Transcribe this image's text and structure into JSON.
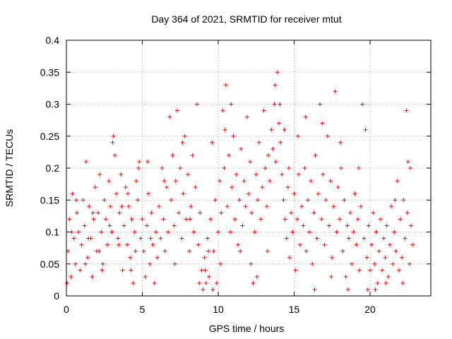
{
  "chart_data": {
    "type": "scatter",
    "title": "Day 364 of 2021, SRMTID for receiver mtut",
    "xlabel": "GPS time / hours",
    "ylabel": "SRMTID / TECUs",
    "xlim": [
      0,
      24
    ],
    "ylim": [
      0,
      0.4
    ],
    "xticks": [
      0,
      5,
      10,
      15,
      20
    ],
    "xtick_labels": [
      "0",
      "5",
      "10",
      "15",
      "20"
    ],
    "yticks": [
      0,
      0.05,
      0.1,
      0.15,
      0.2,
      0.25,
      0.3,
      0.35,
      0.4
    ],
    "ytick_labels": [
      "0",
      "0.05",
      "0.1",
      "0.15",
      "0.2",
      "0.25",
      "0.3",
      "0.35",
      "0.4"
    ],
    "grid": true,
    "marker": "plus",
    "marker_color": "#ff0000",
    "series": [
      {
        "name": "SRMTID",
        "points": [
          [
            0.1,
            0.07
          ],
          [
            0.2,
            0.12
          ],
          [
            0.3,
            0.03
          ],
          [
            0.4,
            0.16
          ],
          [
            0.5,
            0.09
          ],
          [
            0.6,
            0.05
          ],
          [
            0.7,
            0.13
          ],
          [
            0.8,
            0.1
          ],
          [
            0.9,
            0.04
          ],
          [
            1.0,
            0.08
          ],
          [
            1.1,
            0.15
          ],
          [
            1.2,
            0.11
          ],
          [
            1.3,
            0.21
          ],
          [
            1.4,
            0.06
          ],
          [
            1.5,
            0.14
          ],
          [
            1.6,
            0.09
          ],
          [
            1.7,
            0.03
          ],
          [
            1.8,
            0.12
          ],
          [
            1.9,
            0.17
          ],
          [
            2.0,
            0.07
          ],
          [
            2.1,
            0.13
          ],
          [
            2.2,
            0.19
          ],
          [
            2.3,
            0.1
          ],
          [
            2.4,
            0.05
          ],
          [
            2.5,
            0.15
          ],
          [
            2.6,
            0.12
          ],
          [
            2.7,
            0.08
          ],
          [
            2.8,
            0.18
          ],
          [
            2.9,
            0.14
          ],
          [
            3.0,
            0.1
          ],
          [
            3.1,
            0.25
          ],
          [
            3.2,
            0.22
          ],
          [
            3.3,
            0.16
          ],
          [
            3.4,
            0.09
          ],
          [
            3.5,
            0.13
          ],
          [
            3.6,
            0.19
          ],
          [
            3.7,
            0.04
          ],
          [
            3.8,
            0.11
          ],
          [
            3.9,
            0.17
          ],
          [
            4.0,
            0.08
          ],
          [
            4.1,
            0.14
          ],
          [
            4.2,
            0.06
          ],
          [
            4.3,
            0.12
          ],
          [
            4.4,
            0.02
          ],
          [
            4.5,
            0.1
          ],
          [
            4.6,
            0.18
          ],
          [
            4.7,
            0.15
          ],
          [
            4.8,
            0.21
          ],
          [
            4.9,
            0.09
          ],
          [
            5.0,
            0.12
          ],
          [
            5.1,
            0.07
          ],
          [
            5.2,
            0.03
          ],
          [
            5.3,
            0.11
          ],
          [
            5.4,
            0.16
          ],
          [
            5.5,
            0.05
          ],
          [
            5.6,
            0.13
          ],
          [
            5.7,
            0.08
          ],
          [
            5.8,
            0.02
          ],
          [
            5.9,
            0.1
          ],
          [
            6.0,
            0.06
          ],
          [
            6.1,
            0.14
          ],
          [
            6.2,
            0.09
          ],
          [
            6.3,
            0.2
          ],
          [
            6.4,
            0.12
          ],
          [
            6.5,
            0.07
          ],
          [
            6.6,
            0.17
          ],
          [
            6.7,
            0.1
          ],
          [
            6.8,
            0.28
          ],
          [
            6.9,
            0.15
          ],
          [
            7.0,
            0.22
          ],
          [
            7.1,
            0.11
          ],
          [
            7.2,
            0.18
          ],
          [
            7.3,
            0.29
          ],
          [
            7.4,
            0.13
          ],
          [
            7.5,
            0.2
          ],
          [
            7.6,
            0.09
          ],
          [
            7.7,
            0.16
          ],
          [
            7.8,
            0.25
          ],
          [
            7.9,
            0.12
          ],
          [
            8.0,
            0.19
          ],
          [
            8.1,
            0.07
          ],
          [
            8.2,
            0.14
          ],
          [
            8.3,
            0.22
          ],
          [
            8.4,
            0.1
          ],
          [
            8.5,
            0.17
          ],
          [
            8.6,
            0.3
          ],
          [
            8.7,
            0.08
          ],
          [
            8.8,
            0.13
          ],
          [
            8.9,
            0.04
          ],
          [
            9.0,
            0.01
          ],
          [
            9.1,
            0.06
          ],
          [
            9.2,
            0.02
          ],
          [
            9.3,
            0.09
          ],
          [
            9.4,
            0.03
          ],
          [
            9.5,
            0.12
          ],
          [
            9.6,
            0.24
          ],
          [
            9.7,
            0.07
          ],
          [
            9.8,
            0.15
          ],
          [
            9.9,
            0.02
          ],
          [
            10.0,
            0.1
          ],
          [
            10.1,
            0.18
          ],
          [
            10.2,
            0.13
          ],
          [
            10.3,
            0.29
          ],
          [
            10.4,
            0.2
          ],
          [
            10.5,
            0.33
          ],
          [
            10.6,
            0.14
          ],
          [
            10.7,
            0.22
          ],
          [
            10.8,
            0.1
          ],
          [
            10.9,
            0.17
          ],
          [
            11.0,
            0.25
          ],
          [
            11.1,
            0.12
          ],
          [
            11.2,
            0.19
          ],
          [
            11.3,
            0.08
          ],
          [
            11.4,
            0.15
          ],
          [
            11.5,
            0.23
          ],
          [
            11.6,
            0.11
          ],
          [
            11.7,
            0.18
          ],
          [
            11.8,
            0.14
          ],
          [
            11.9,
            0.28
          ],
          [
            12.0,
            0.16
          ],
          [
            12.1,
            0.21
          ],
          [
            12.2,
            0.13
          ],
          [
            12.3,
            0.02
          ],
          [
            12.4,
            0.1
          ],
          [
            12.5,
            0.19
          ],
          [
            12.6,
            0.15
          ],
          [
            12.7,
            0.24
          ],
          [
            12.8,
            0.12
          ],
          [
            12.9,
            0.17
          ],
          [
            13.0,
            0.29
          ],
          [
            13.1,
            0.2
          ],
          [
            13.2,
            0.14
          ],
          [
            13.3,
            0.22
          ],
          [
            13.4,
            0.18
          ],
          [
            13.5,
            0.26
          ],
          [
            13.6,
            0.23
          ],
          [
            13.7,
            0.3
          ],
          [
            13.8,
            0.21
          ],
          [
            13.9,
            0.35
          ],
          [
            14.0,
            0.27
          ],
          [
            14.1,
            0.24
          ],
          [
            14.2,
            0.19
          ],
          [
            14.3,
            0.15
          ],
          [
            14.4,
            0.12
          ],
          [
            14.5,
            0.09
          ],
          [
            14.6,
            0.17
          ],
          [
            14.7,
            0.06
          ],
          [
            14.8,
            0.13
          ],
          [
            14.9,
            0.1
          ],
          [
            15.0,
            0.16
          ],
          [
            15.1,
            0.04
          ],
          [
            15.2,
            0.12
          ],
          [
            15.3,
            0.19
          ],
          [
            15.4,
            0.08
          ],
          [
            15.5,
            0.14
          ],
          [
            15.6,
            0.11
          ],
          [
            15.7,
            0.2
          ],
          [
            15.8,
            0.07
          ],
          [
            15.9,
            0.15
          ],
          [
            16.0,
            0.1
          ],
          [
            16.1,
            0.18
          ],
          [
            16.2,
            0.05
          ],
          [
            16.3,
            0.13
          ],
          [
            16.4,
            0.22
          ],
          [
            16.5,
            0.09
          ],
          [
            16.6,
            0.16
          ],
          [
            16.7,
            0.3
          ],
          [
            16.8,
            0.12
          ],
          [
            16.9,
            0.19
          ],
          [
            17.0,
            0.08
          ],
          [
            17.1,
            0.15
          ],
          [
            17.2,
            0.25
          ],
          [
            17.3,
            0.11
          ],
          [
            17.4,
            0.18
          ],
          [
            17.5,
            0.06
          ],
          [
            17.6,
            0.14
          ],
          [
            17.7,
            0.32
          ],
          [
            17.8,
            0.1
          ],
          [
            17.9,
            0.17
          ],
          [
            18.0,
            0.12
          ],
          [
            18.1,
            0.2
          ],
          [
            18.2,
            0.07
          ],
          [
            18.3,
            0.15
          ],
          [
            18.4,
            0.03
          ],
          [
            18.5,
            0.11
          ],
          [
            18.6,
            0.09
          ],
          [
            18.7,
            0.13
          ],
          [
            18.8,
            0.05
          ],
          [
            18.9,
            0.1
          ],
          [
            19.0,
            0.16
          ],
          [
            19.1,
            0.08
          ],
          [
            19.2,
            0.12
          ],
          [
            19.3,
            0.04
          ],
          [
            19.4,
            0.14
          ],
          [
            19.5,
            0.3
          ],
          [
            19.6,
            0.09
          ],
          [
            19.7,
            0.26
          ],
          [
            19.8,
            0.06
          ],
          [
            19.9,
            0.11
          ],
          [
            20.0,
            0.04
          ],
          [
            20.1,
            0.08
          ],
          [
            20.2,
            0.13
          ],
          [
            20.3,
            0.05
          ],
          [
            20.4,
            0.1
          ],
          [
            20.5,
            0.02
          ],
          [
            20.6,
            0.07
          ],
          [
            20.7,
            0.12
          ],
          [
            20.8,
            0.04
          ],
          [
            20.9,
            0.09
          ],
          [
            21.0,
            0.06
          ],
          [
            21.1,
            0.11
          ],
          [
            21.2,
            0.03
          ],
          [
            21.3,
            0.08
          ],
          [
            21.4,
            0.14
          ],
          [
            21.5,
            0.05
          ],
          [
            21.6,
            0.1
          ],
          [
            21.7,
            0.07
          ],
          [
            21.8,
            0.18
          ],
          [
            21.9,
            0.04
          ],
          [
            22.0,
            0.12
          ],
          [
            22.1,
            0.06
          ],
          [
            22.2,
            0.15
          ],
          [
            22.3,
            0.09
          ],
          [
            22.4,
            0.29
          ],
          [
            22.5,
            0.21
          ],
          [
            22.6,
            0.05
          ],
          [
            22.7,
            0.11
          ],
          [
            22.8,
            0.08
          ],
          [
            0.05,
            0.02
          ],
          [
            0.35,
            0.1
          ],
          [
            1.25,
            0.05
          ],
          [
            1.75,
            0.13
          ],
          [
            2.35,
            0.04
          ],
          [
            3.05,
            0.24
          ],
          [
            3.65,
            0.14
          ],
          [
            4.25,
            0.04
          ],
          [
            4.75,
            0.2
          ],
          [
            5.35,
            0.21
          ],
          [
            5.55,
            0.09
          ],
          [
            6.45,
            0.18
          ],
          [
            7.15,
            0.05
          ],
          [
            7.65,
            0.24
          ],
          [
            8.15,
            0.12
          ],
          [
            8.75,
            0.02
          ],
          [
            9.15,
            0.04
          ],
          [
            9.35,
            0.07
          ],
          [
            9.65,
            0.01
          ],
          [
            10.15,
            0.05
          ],
          [
            10.45,
            0.26
          ],
          [
            10.85,
            0.3
          ],
          [
            11.45,
            0.07
          ],
          [
            12.15,
            0.05
          ],
          [
            12.55,
            0.03
          ],
          [
            13.25,
            0.07
          ],
          [
            13.75,
            0.33
          ],
          [
            14.05,
            0.3
          ],
          [
            14.35,
            0.26
          ],
          [
            14.65,
            0.2
          ],
          [
            15.25,
            0.25
          ],
          [
            15.75,
            0.28
          ],
          [
            16.35,
            0.01
          ],
          [
            16.85,
            0.27
          ],
          [
            17.45,
            0.03
          ],
          [
            18.05,
            0.24
          ],
          [
            18.55,
            0.01
          ],
          [
            19.25,
            0.2
          ],
          [
            19.85,
            0.01
          ],
          [
            20.35,
            0.01
          ],
          [
            21.05,
            0.02
          ],
          [
            21.65,
            0.15
          ],
          [
            22.15,
            0.02
          ],
          [
            22.45,
            0.13
          ],
          [
            22.65,
            0.2
          ],
          [
            0.65,
            0.15
          ],
          [
            1.45,
            0.09
          ],
          [
            2.15,
            0.07
          ],
          [
            2.85,
            0.11
          ],
          [
            3.45,
            0.08
          ],
          [
            4.05,
            0.16
          ],
          [
            4.55,
            0.07
          ]
        ]
      }
    ]
  }
}
